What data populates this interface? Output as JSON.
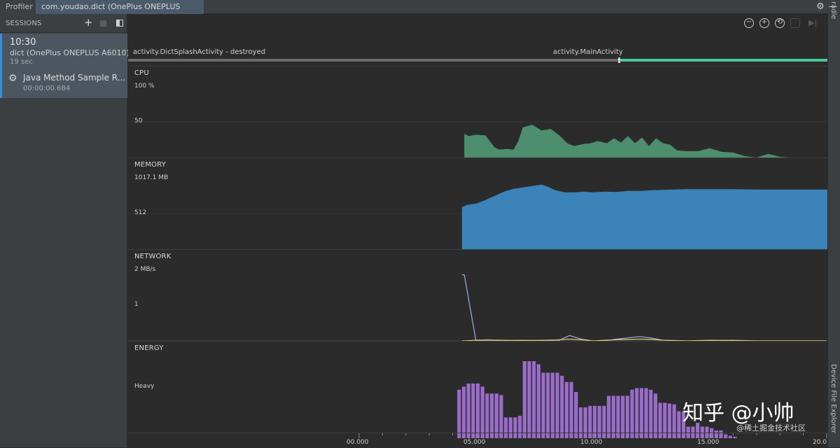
{
  "tabs": {
    "profiler": "Profiler",
    "session": "com.youdao.dict (OnePlus ONEPLUS A6010)"
  },
  "side_tools": {
    "gradle": "radle",
    "device_file_explorer": "Device File Explorer"
  },
  "sessions": {
    "title": "SESSIONS",
    "item": {
      "time": "10:30",
      "device": "dict (OnePlus ONEPLUS A6010)",
      "duration": "19 sec",
      "trace_name": "Java Method Sample R...",
      "trace_time": "00:00:00.684"
    }
  },
  "icons": {
    "add": "plus-icon",
    "stop": "stop-icon",
    "panel": "panel-toggle-icon",
    "gear": "gear-icon",
    "minimize": "minimize-icon",
    "zoom_out": "zoom-out-icon",
    "zoom_in": "zoom-in-icon",
    "reset": "reset-zoom-icon",
    "attach": "attach-icon",
    "live": "go-live-icon",
    "trace": "trace-gear-icon"
  },
  "activities": {
    "splash": "activity.DictSplashActivity - destroyed",
    "main": "activity.MainActivity"
  },
  "colors": {
    "cpu": "#4d8e6e",
    "memory": "#3b83b8",
    "network_rx": "#8fa8e6",
    "network_tx": "#e0c060",
    "energy": "#9a6cc9",
    "activity_main": "#4cc79a",
    "session_accent": "#3b8fd8"
  },
  "tracks": {
    "cpu": {
      "title": "CPU",
      "max_label": "100 %",
      "mid_label": "50"
    },
    "memory": {
      "title": "MEMORY",
      "max_label": "1017.1 MB",
      "mid_label": "512"
    },
    "network": {
      "title": "NETWORK",
      "max_label": "2 MB/s",
      "mid_label": "1"
    },
    "energy": {
      "title": "ENERGY",
      "mid_label": "Heavy"
    }
  },
  "axis": {
    "ticks": [
      "00.000",
      "05.000",
      "10.000",
      "15.000",
      "20.0"
    ]
  },
  "chart_data": [
    {
      "type": "area",
      "name": "CPU",
      "ylim": [
        0,
        100
      ],
      "x": [
        4.5,
        4.7,
        5.0,
        5.4,
        5.8,
        6.0,
        6.3,
        6.6,
        6.8,
        7.0,
        7.4,
        7.8,
        8.2,
        8.6,
        8.9,
        9.2,
        9.6,
        9.9,
        10.2,
        10.6,
        10.9,
        11.2,
        11.5,
        11.8,
        12.1,
        12.4,
        12.7,
        13.0,
        13.3,
        13.6,
        14.0,
        14.5,
        15.0,
        15.5,
        16.0,
        16.5,
        17.0,
        17.5,
        18.0,
        18.4
      ],
      "values": [
        33,
        30,
        32,
        31,
        14,
        11,
        12,
        11,
        22,
        42,
        46,
        38,
        40,
        30,
        20,
        16,
        19,
        20,
        23,
        20,
        27,
        21,
        30,
        20,
        28,
        16,
        27,
        20,
        18,
        10,
        9,
        9,
        13,
        8,
        7,
        2,
        0,
        5,
        1,
        0
      ]
    },
    {
      "type": "area",
      "name": "MEMORY",
      "ylim": [
        0,
        1017.1
      ],
      "x": [
        4.4,
        4.6,
        5.0,
        5.4,
        5.8,
        6.2,
        6.6,
        7.0,
        7.4,
        7.8,
        8.0,
        8.4,
        8.8,
        9.2,
        9.6,
        10.0,
        10.5,
        11.0,
        11.5,
        12.0,
        12.5,
        13.0,
        13.5,
        14.0,
        15.0,
        16.0,
        17.0,
        18.0,
        19.0,
        20.0
      ],
      "values": [
        600,
        630,
        650,
        700,
        760,
        820,
        860,
        880,
        900,
        920,
        900,
        840,
        810,
        810,
        820,
        810,
        820,
        815,
        830,
        830,
        840,
        845,
        850,
        855,
        855,
        855,
        850,
        850,
        850,
        850
      ]
    },
    {
      "type": "line",
      "name": "NETWORK",
      "ylim": [
        0,
        2
      ],
      "x": [
        4.4,
        4.5,
        5.0,
        5.5,
        6.0,
        7.0,
        8.0,
        8.5,
        9.0,
        9.5,
        10.0,
        10.5,
        11.0,
        12.0,
        12.5,
        13.0,
        14.0,
        15.0,
        16.0,
        17.0,
        18.0,
        19.0,
        20.0
      ],
      "series": [
        {
          "values": [
            1.85,
            1.85,
            0.0,
            0.0,
            0.0,
            0.02,
            0.0,
            0.0,
            0.15,
            0.05,
            0.0,
            0.0,
            0.05,
            0.12,
            0.08,
            0.02,
            0.0,
            0.0,
            0.02,
            0.0,
            0.0,
            0.0,
            0.0
          ]
        },
        {
          "values": [
            0.0,
            0.0,
            0.02,
            0.03,
            0.02,
            0.01,
            0.02,
            0.03,
            0.05,
            0.03,
            0.0,
            0.02,
            0.03,
            0.05,
            0.04,
            0.02,
            0.0,
            0.02,
            0.01,
            0.0,
            0.0,
            0.0,
            0.0
          ]
        }
      ]
    },
    {
      "type": "bar",
      "name": "ENERGY",
      "ylim": [
        0,
        100
      ],
      "x_start": 4.2,
      "x_step": 0.2,
      "values": [
        63,
        67,
        71,
        71,
        71,
        67,
        58,
        58,
        58,
        56,
        27,
        27,
        27,
        29,
        100,
        100,
        100,
        96,
        85,
        85,
        85,
        85,
        81,
        73,
        73,
        60,
        40,
        40,
        42,
        42,
        42,
        42,
        55,
        55,
        55,
        55,
        55,
        63,
        65,
        65,
        65,
        63,
        58,
        46,
        46,
        45,
        44,
        35,
        35,
        15,
        15,
        20,
        15,
        15,
        13,
        10,
        10,
        5,
        3,
        2
      ]
    }
  ],
  "watermark": {
    "main": "知乎 @小帅",
    "secondary": "@稀土掘金技术社区"
  }
}
